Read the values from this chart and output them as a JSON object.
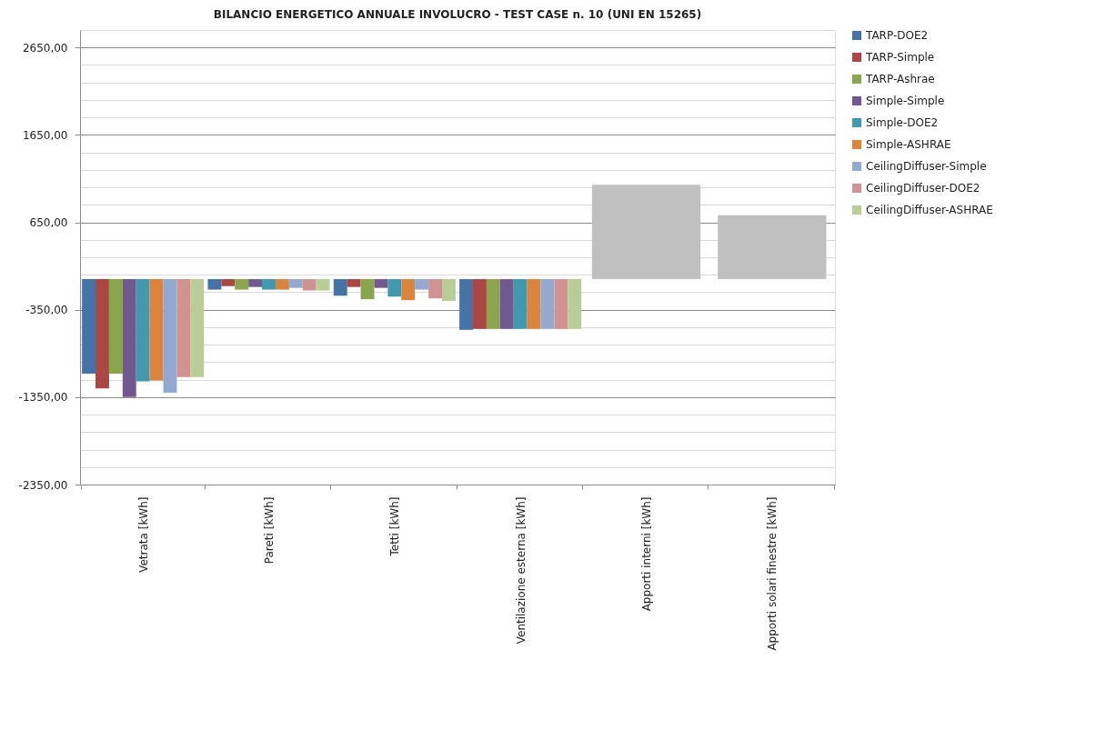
{
  "chart_data": {
    "type": "bar",
    "title": "BILANCIO ENERGETICO ANNUALE INVOLUCRO - TEST CASE n. 10 (UNI EN 15265)",
    "categories": [
      "Vetrata [kWh]",
      "Pareti [kWh]",
      "Tetti [kWh]",
      "Ventilazione esterna [kWh]",
      "Apporti interni [kWh]",
      "Apporti solari finestre [kWh]"
    ],
    "series": [
      {
        "name": "TARP-DOE2",
        "color": "#4572a7",
        "values": [
          -1080,
          -120,
          -190,
          -580,
          null,
          null
        ]
      },
      {
        "name": "TARP-Simple",
        "color": "#aa4643",
        "values": [
          -1250,
          -80,
          -90,
          -570,
          null,
          null
        ]
      },
      {
        "name": "TARP-Ashrae",
        "color": "#89a54e",
        "values": [
          -1080,
          -120,
          -230,
          -570,
          null,
          null
        ]
      },
      {
        "name": "Simple-Simple",
        "color": "#71588f",
        "values": [
          -1350,
          -90,
          -100,
          -570,
          null,
          null
        ]
      },
      {
        "name": "Simple-DOE2",
        "color": "#4198af",
        "values": [
          -1170,
          -120,
          -200,
          -570,
          null,
          null
        ]
      },
      {
        "name": "Simple-ASHRAE",
        "color": "#db843d",
        "values": [
          -1160,
          -120,
          -240,
          -570,
          null,
          null
        ]
      },
      {
        "name": "CeilingDiffuser-Simple",
        "color": "#93a9cf",
        "values": [
          -1300,
          -100,
          -120,
          -570,
          null,
          null
        ]
      },
      {
        "name": "CeilingDiffuser-DOE2",
        "color": "#d19392",
        "values": [
          -1120,
          -130,
          -220,
          -570,
          null,
          null
        ]
      },
      {
        "name": "CeilingDiffuser-ASHRAE",
        "color": "#b9cd96",
        "values": [
          -1120,
          -130,
          -250,
          -570,
          null,
          null
        ]
      },
      {
        "color": "#c0c0c0",
        "values": [
          null,
          null,
          null,
          null,
          1080,
          730
        ]
      }
    ],
    "ylim": [
      -2350,
      2850
    ],
    "yticks": [
      {
        "value": -2350,
        "label": "-2350,00"
      },
      {
        "value": -2150,
        "label": null
      },
      {
        "value": -1950,
        "label": null
      },
      {
        "value": -1750,
        "label": null
      },
      {
        "value": -1550,
        "label": null
      },
      {
        "value": -1350,
        "label": "-1350,00"
      },
      {
        "value": -1150,
        "label": null
      },
      {
        "value": -950,
        "label": null
      },
      {
        "value": -750,
        "label": null
      },
      {
        "value": -550,
        "label": null
      },
      {
        "value": -350,
        "label": "-350,00"
      },
      {
        "value": -150,
        "label": null
      },
      {
        "value": 50,
        "label": null
      },
      {
        "value": 250,
        "label": null
      },
      {
        "value": 450,
        "label": null
      },
      {
        "value": 650,
        "label": "650,00"
      },
      {
        "value": 850,
        "label": null
      },
      {
        "value": 1050,
        "label": null
      },
      {
        "value": 1250,
        "label": null
      },
      {
        "value": 1450,
        "label": null
      },
      {
        "value": 1650,
        "label": "1650,00"
      },
      {
        "value": 1850,
        "label": null
      },
      {
        "value": 2050,
        "label": null
      },
      {
        "value": 2250,
        "label": null
      },
      {
        "value": 2450,
        "label": null
      },
      {
        "value": 2650,
        "label": "2650,00"
      },
      {
        "value": 2850,
        "label": null
      }
    ],
    "grid": "y",
    "legend": "right"
  }
}
